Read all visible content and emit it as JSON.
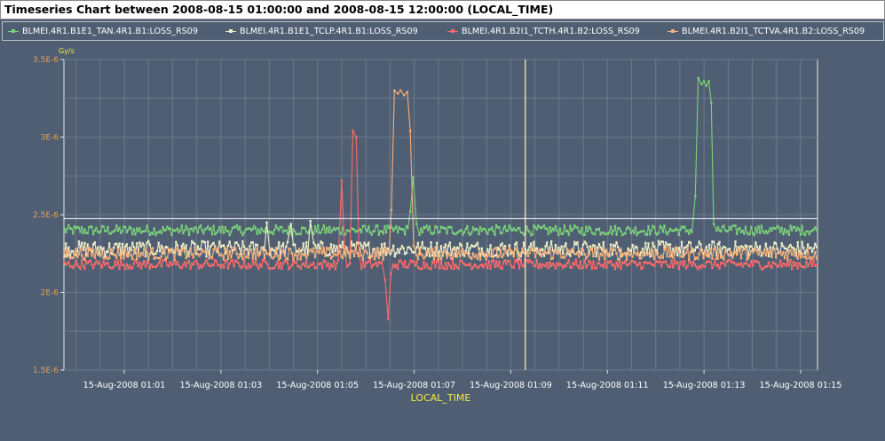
{
  "window": {
    "title": "Timeseries Chart between 2008-08-15 01:00:00 and 2008-08-15 12:00:00 (LOCAL_TIME)"
  },
  "legend": {
    "items": [
      {
        "label": "BLMEI.4R1.B1E1_TAN.4R1.B1:LOSS_RS09",
        "color": "#7bd37b"
      },
      {
        "label": "BLMEI.4R1.B1E1_TCLP.4R1.B1:LOSS_RS09",
        "color": "#f0f0c8"
      },
      {
        "label": "BLMEI.4R1.B2I1_TCTH.4R1.B2:LOSS_RS09",
        "color": "#ff6a6a"
      },
      {
        "label": "BLMEI.4R1.B2I1_TCTVA.4R1.B2:LOSS_RS09",
        "color": "#f6b07a"
      }
    ]
  },
  "chart_data": {
    "type": "line",
    "title": "Timeseries Chart between 2008-08-15 01:00:00 and 2008-08-15 12:00:00 (LOCAL_TIME)",
    "xlabel": "LOCAL_TIME",
    "ylabel": "Gy/s",
    "x_unit": "minutes after 2008-08-15 00:00:00",
    "xlim": [
      59.75,
      75.35
    ],
    "ylim": [
      1.5e-06,
      3.5e-06
    ],
    "x_ticks": [
      {
        "label": "15-Aug-2008 01:01",
        "value": 61
      },
      {
        "label": "15-Aug-2008 01:03",
        "value": 63
      },
      {
        "label": "15-Aug-2008 01:05",
        "value": 65
      },
      {
        "label": "15-Aug-2008 01:07",
        "value": 67
      },
      {
        "label": "15-Aug-2008 01:09",
        "value": 69
      },
      {
        "label": "15-Aug-2008 01:11",
        "value": 71
      },
      {
        "label": "15-Aug-2008 01:13",
        "value": 73
      },
      {
        "label": "15-Aug-2008 01:15",
        "value": 75
      }
    ],
    "y_ticks": [
      {
        "label": "1.5E-6",
        "value": 1.5e-06
      },
      {
        "label": "2E-6",
        "value": 2e-06
      },
      {
        "label": "2.5E-6",
        "value": 2.5e-06
      },
      {
        "label": "3E-6",
        "value": 3e-06
      },
      {
        "label": "3.5E-6",
        "value": 3.5e-06
      }
    ],
    "crosshair": {
      "x": 69.3,
      "y": 2.475e-06
    },
    "grid": true,
    "legend_position": "top",
    "series": [
      {
        "name": "BLMEI.4R1.B1E1_TAN.4R1.B1:LOSS_RS09",
        "color": "#7bd37b",
        "base": 2.4e-06,
        "noise": 3.2e-08,
        "spikes": [
          {
            "x": 66.92,
            "y": 2.52e-06
          },
          {
            "x": 66.98,
            "y": 2.74e-06
          },
          {
            "x": 67.05,
            "y": 2.44e-06
          },
          {
            "x": 72.82,
            "y": 2.62e-06
          },
          {
            "x": 72.88,
            "y": 3.38e-06
          },
          {
            "x": 72.95,
            "y": 3.34e-06
          },
          {
            "x": 73.0,
            "y": 3.36e-06
          },
          {
            "x": 73.05,
            "y": 3.33e-06
          },
          {
            "x": 73.1,
            "y": 3.36e-06
          },
          {
            "x": 73.15,
            "y": 3.22e-06
          },
          {
            "x": 73.2,
            "y": 2.44e-06
          }
        ]
      },
      {
        "name": "BLMEI.4R1.B1E1_TCLP.4R1.B1:LOSS_RS09",
        "color": "#f0f0c8",
        "base": 2.28e-06,
        "noise": 5e-08,
        "spikes": [
          {
            "x": 63.95,
            "y": 2.45e-06
          },
          {
            "x": 64.45,
            "y": 2.44e-06
          },
          {
            "x": 64.85,
            "y": 2.46e-06
          }
        ]
      },
      {
        "name": "BLMEI.4R1.B2I1_TCTH.4R1.B2:LOSS_RS09",
        "color": "#ff6a6a",
        "base": 2.18e-06,
        "noise": 3e-08,
        "spikes": [
          {
            "x": 65.5,
            "y": 2.72e-06
          },
          {
            "x": 65.56,
            "y": 2.3e-06
          },
          {
            "x": 65.73,
            "y": 3.04e-06
          },
          {
            "x": 65.8,
            "y": 3e-06
          },
          {
            "x": 65.86,
            "y": 2.25e-06
          },
          {
            "x": 66.4,
            "y": 2.08e-06
          },
          {
            "x": 66.46,
            "y": 1.83e-06
          },
          {
            "x": 66.52,
            "y": 2.12e-06
          }
        ]
      },
      {
        "name": "BLMEI.4R1.B2I1_TCTVA.4R1.B2:LOSS_RS09",
        "color": "#f6b07a",
        "base": 2.25e-06,
        "noise": 4e-08,
        "spikes": [
          {
            "x": 66.53,
            "y": 2.53e-06
          },
          {
            "x": 66.59,
            "y": 3.3e-06
          },
          {
            "x": 66.66,
            "y": 3.28e-06
          },
          {
            "x": 66.72,
            "y": 3.3e-06
          },
          {
            "x": 66.79,
            "y": 3.27e-06
          },
          {
            "x": 66.86,
            "y": 3.29e-06
          },
          {
            "x": 66.92,
            "y": 3.04e-06
          },
          {
            "x": 66.99,
            "y": 2.3e-06
          }
        ]
      }
    ]
  }
}
